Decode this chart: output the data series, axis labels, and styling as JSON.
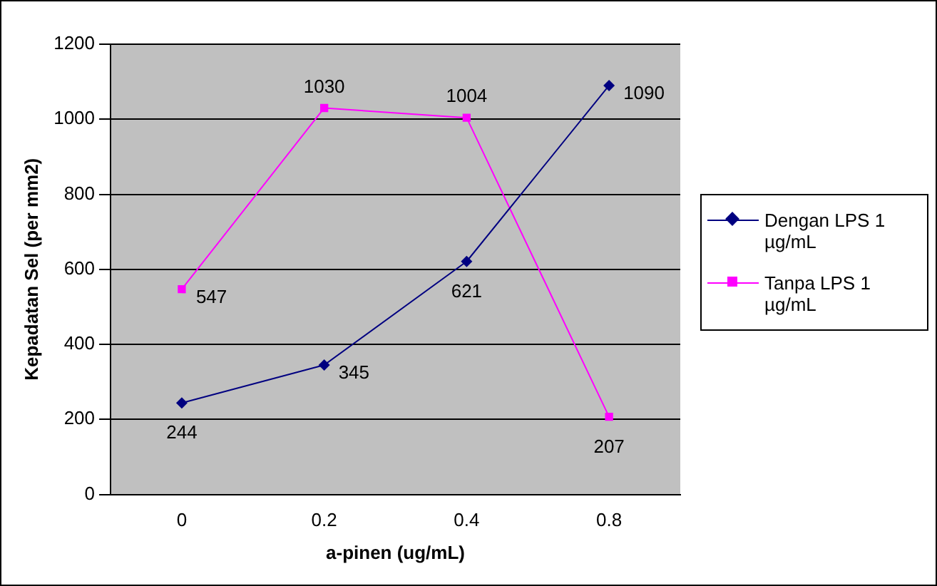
{
  "chart_data": {
    "type": "line",
    "xlabel": "a-pinen (ug/mL)",
    "ylabel": "Kepadatan Sel (per mm2)",
    "categories": [
      "0",
      "0.2",
      "0.4",
      "0.8"
    ],
    "series": [
      {
        "name": "Dengan LPS 1 µg/mL",
        "color": "#000080",
        "marker": "diamond",
        "values": [
          244,
          345,
          621,
          1090
        ]
      },
      {
        "name": "Tanpa LPS 1 µg/mL",
        "color": "#ff00ff",
        "marker": "square",
        "values": [
          547,
          1030,
          1004,
          207
        ]
      }
    ],
    "ylim": [
      0,
      1200
    ],
    "yticks": [
      0,
      200,
      400,
      600,
      800,
      1000,
      1200
    ],
    "grid": "y",
    "legend": "right",
    "data_labels": true
  }
}
